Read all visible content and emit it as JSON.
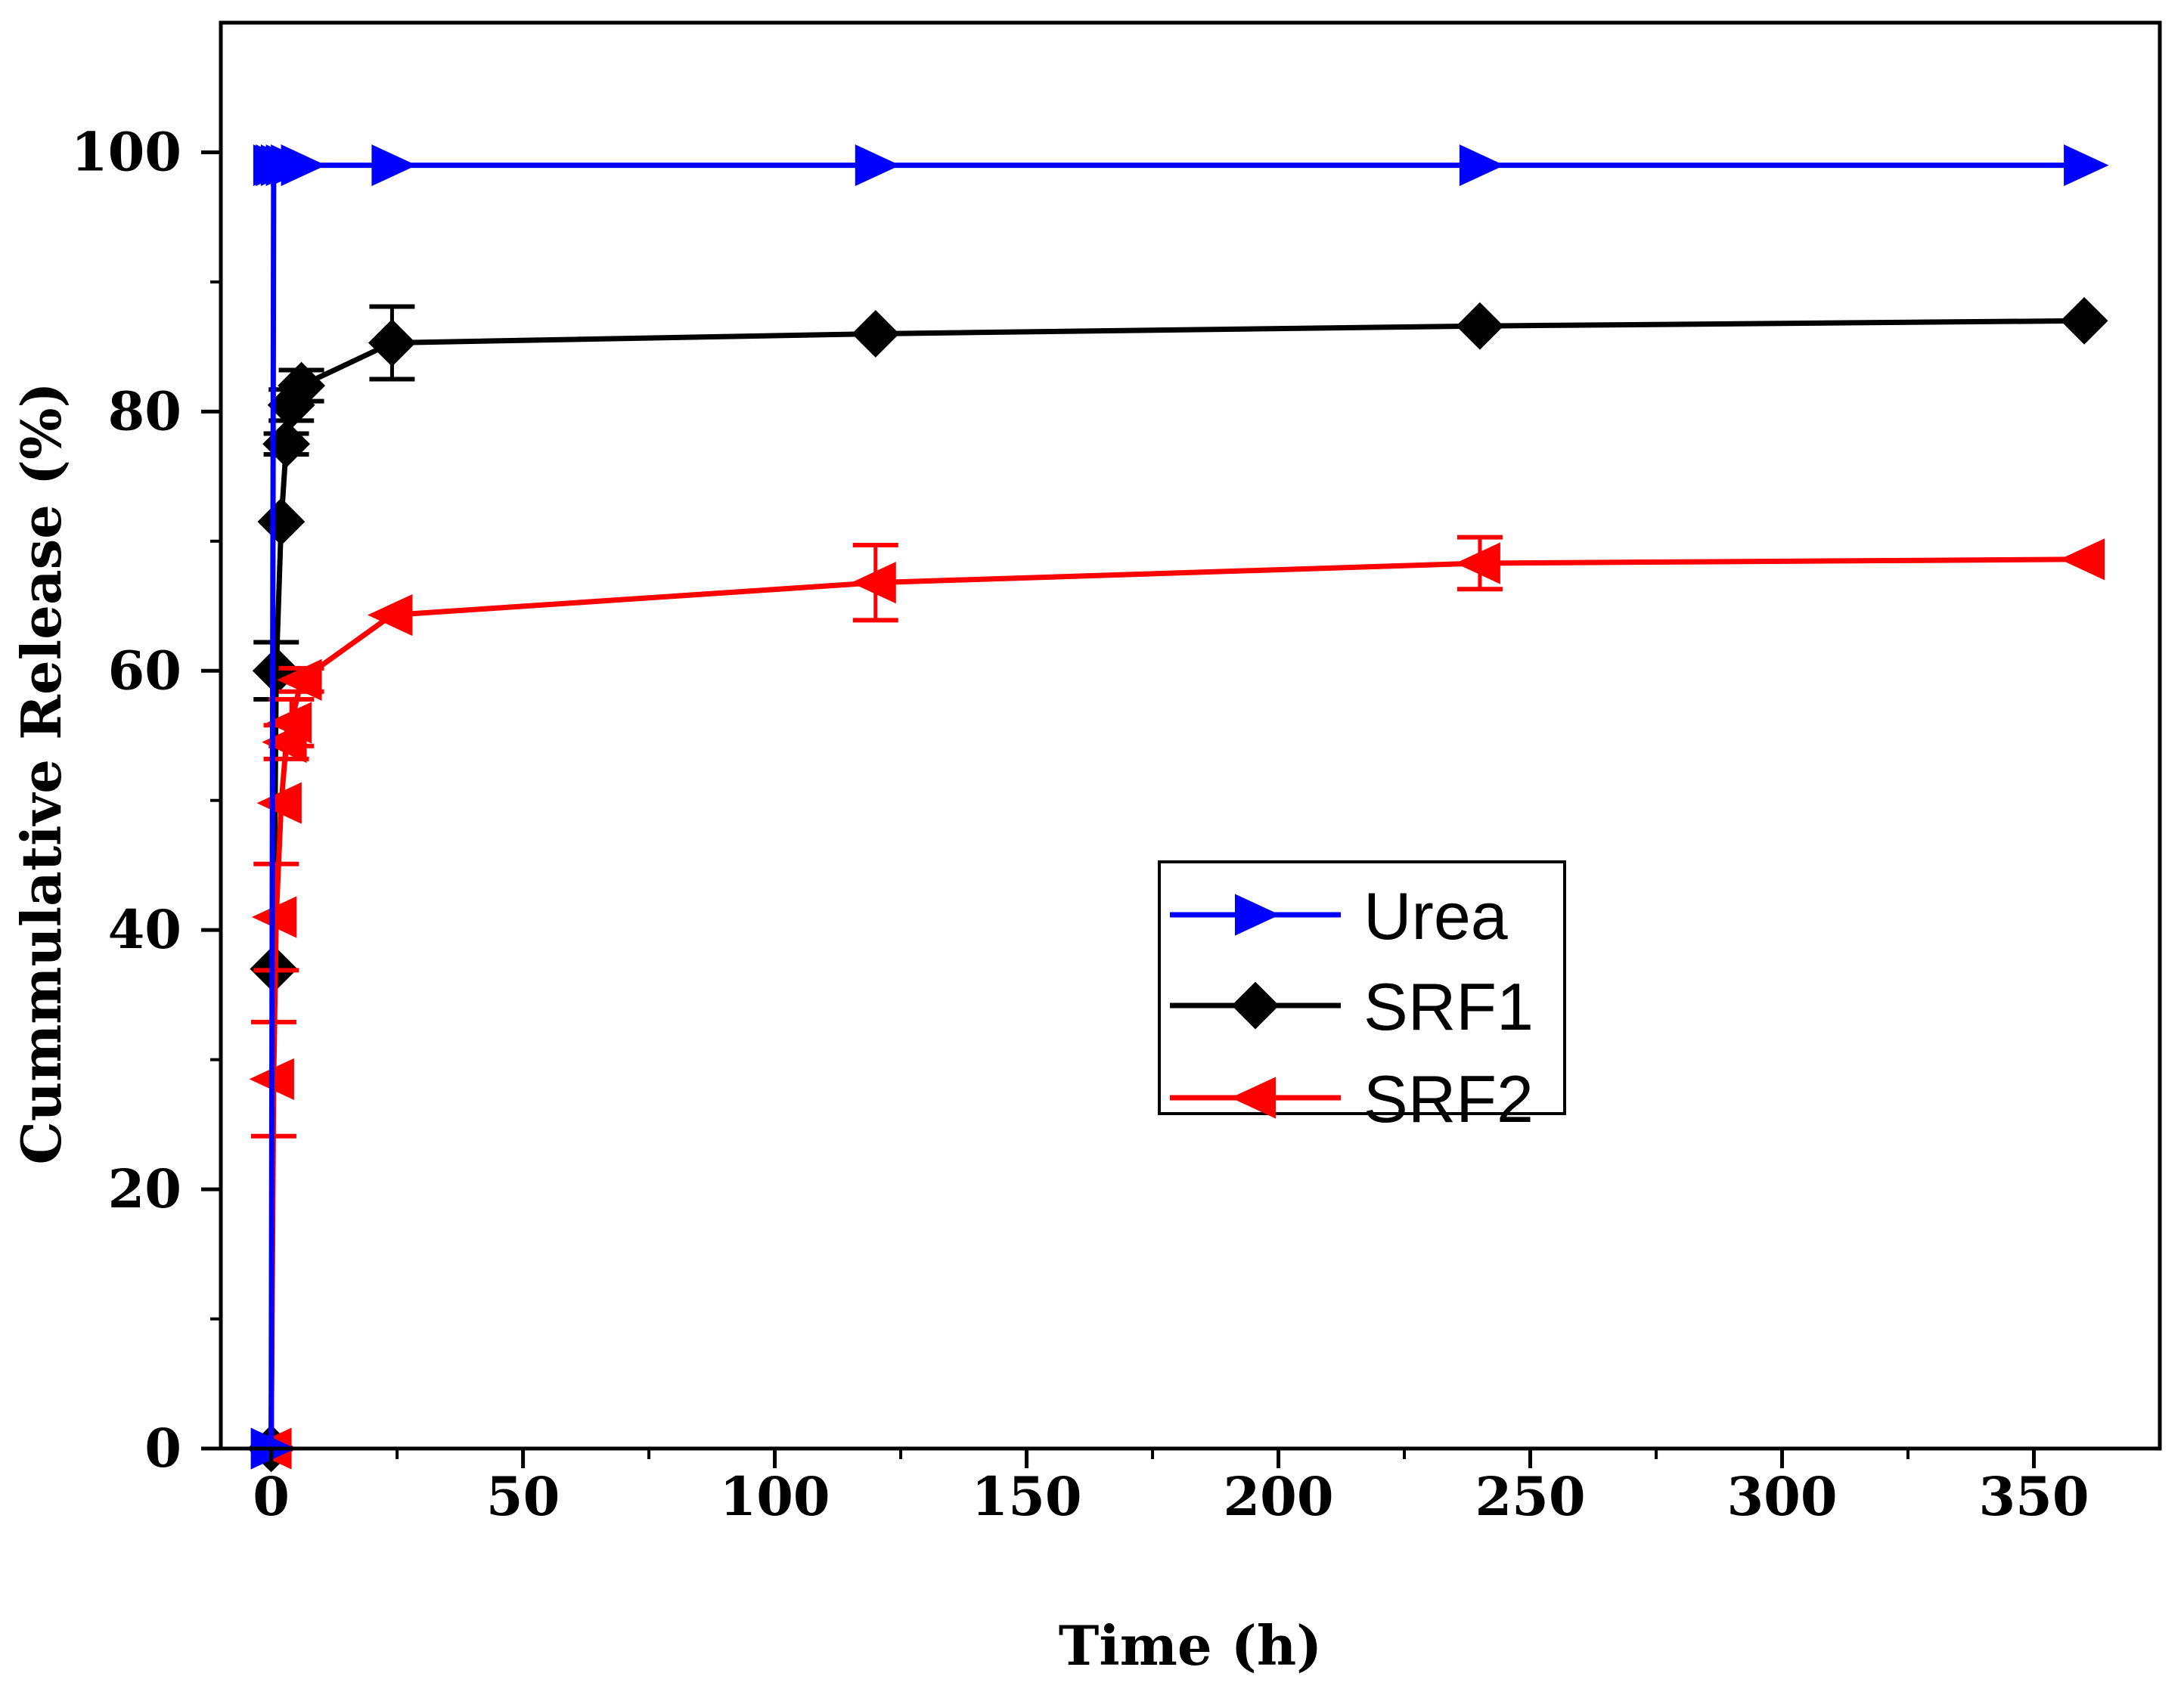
{
  "chart_data": {
    "type": "line",
    "title": "",
    "xlabel": "Time (h)",
    "ylabel": "Cummulative Release (%)",
    "xlim": [
      -10,
      375
    ],
    "ylim": [
      0,
      110
    ],
    "xticks": [
      0,
      50,
      100,
      150,
      200,
      250,
      300,
      350
    ],
    "xtick_labels": [
      "0",
      "50",
      "100",
      "150",
      "200",
      "250",
      "300",
      "350"
    ],
    "yticks": [
      0,
      20,
      40,
      60,
      80,
      100
    ],
    "ytick_labels": [
      "0",
      "20",
      "40",
      "60",
      "80",
      "100"
    ],
    "grid": false,
    "legend_position": "center-right",
    "series": [
      {
        "name": "Urea",
        "color": "#0000ff",
        "marker": "triangle-right",
        "x": [
          0,
          0.5,
          1,
          2,
          3,
          4,
          6,
          24,
          120,
          240,
          360
        ],
        "y": [
          0,
          99,
          99,
          99,
          99,
          99,
          99,
          99,
          99,
          99,
          99
        ],
        "err": [
          0,
          0,
          0,
          0,
          0,
          0,
          0,
          0,
          0,
          0,
          0
        ]
      },
      {
        "name": "SRF1",
        "color": "#000000",
        "marker": "diamond",
        "x": [
          0,
          0.5,
          1,
          2,
          3,
          4,
          6,
          24,
          120,
          240,
          360
        ],
        "y": [
          0,
          37,
          60,
          71.5,
          77.5,
          80.5,
          82,
          85.3,
          86,
          86.6,
          87
        ],
        "err": [
          0,
          0,
          2.2,
          0,
          0.8,
          1.2,
          1.2,
          2.8,
          0,
          0,
          0
        ]
      },
      {
        "name": "SRF2",
        "color": "#ff0000",
        "marker": "triangle-left",
        "x": [
          0,
          0.5,
          1,
          2,
          3,
          4,
          6,
          24,
          120,
          240,
          360
        ],
        "y": [
          0,
          28.5,
          41,
          49.8,
          54.5,
          56,
          59.3,
          64.3,
          66.8,
          68.3,
          68.6
        ],
        "err": [
          0,
          4.4,
          4.1,
          0,
          1.3,
          1.8,
          0.9,
          0,
          2.9,
          2,
          0
        ]
      }
    ]
  }
}
